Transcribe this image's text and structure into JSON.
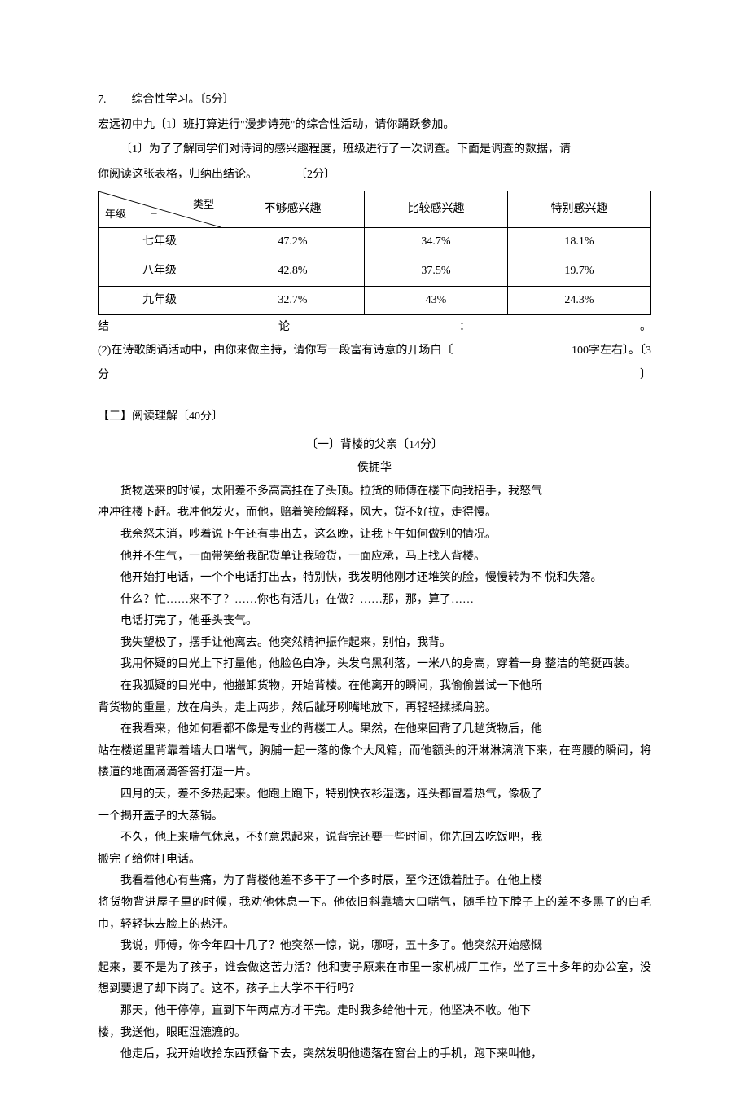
{
  "q7": {
    "num": "7.",
    "title": "综合性学习。〔5分〕",
    "intro": "宏远初中九〔1〕班打算进行\"漫步诗苑\"的综合性活动，请你踊跃参加。",
    "sub1_a": "〔1〕为了了解同学们对诗词的感兴趣程度，班级进行了一次调查。下面是调查的数据，请",
    "sub1_b_left": "你阅读这张表格，归纳出结论。",
    "sub1_b_right": "〔2分〕"
  },
  "table": {
    "diag_top": "类型",
    "diag_bot": "年级",
    "diag_dash": "–",
    "headers": [
      "不够感兴趣",
      "比较感兴趣",
      "特别感兴趣"
    ],
    "rows": [
      {
        "grade": "七年级",
        "c1": "47.2%",
        "c2": "34.7%",
        "c3": "18.1%"
      },
      {
        "grade": "八年级",
        "c1": "42.8%",
        "c2": "37.5%",
        "c3": "19.7%"
      },
      {
        "grade": "九年级",
        "c1": "32.7%",
        "c2": "43%",
        "c3": "24.3%"
      }
    ]
  },
  "conclusion": {
    "a": "结",
    "b": "论",
    "c": "：",
    "d": "。"
  },
  "sub2": {
    "l1_left": "(2)在诗歌朗诵活动中，由你来做主持，请你写一段富有诗意的开场白〔",
    "l1_right": "100字左右〕。〔3",
    "l2_left": "分",
    "l2_right": "〕"
  },
  "reading": {
    "header": "【三】阅读理解〔40分〕",
    "title": "〔一〕背楼的父亲〔14分〕",
    "author": "侯拥华",
    "paragraphs": [
      {
        "first": "货物送来的时候，太阳差不多高高挂在了头顶。拉货的师傅在楼下向我招手，我怒气",
        "rest": "冲冲往楼下赶。我冲他发火，而他，赔着笑脸解释，风大，货不好拉，走得慢。"
      },
      {
        "first": "我余怒未消，吵着说下午还有事出去，这么晚，让我下午如何做别的情况。",
        "rest": ""
      },
      {
        "first": "他并不生气，一面带笑给我配货单让我验货，一面应承，马上找人背楼。",
        "rest": ""
      },
      {
        "first": "他开始打电话，一个个电话打出去，特别快，我发明他刚才还堆笑的脸，慢慢转为不 悦和失落。",
        "rest": ""
      },
      {
        "first": "什么？忙……来不了？……你也有活儿，在做？……那，那，算了……",
        "rest": ""
      },
      {
        "first": "电话打完了，他垂头丧气。",
        "rest": ""
      },
      {
        "first": "我失望极了，摆手让他离去。他突然精神振作起来，别怕，我背。",
        "rest": ""
      },
      {
        "first": "我用怀疑的目光上下打量他，他脸色白净，头发乌黑利落，一米八的身高，穿着一身 整洁的笔挺西装。",
        "rest": ""
      },
      {
        "first": "在我狐疑的目光中，他搬卸货物，开始背楼。在他离开的瞬间，我偷偷尝试一下他所",
        "rest": "背货物的重量，放在肩头，走上两步，然后龇牙咧嘴地放下，再轻轻揉揉肩膀。"
      },
      {
        "first": "在我看来，他如何看都不像是专业的背楼工人。果然，在他来回背了几趟货物后，他",
        "rest": "站在楼道里背靠着墙大口喘气，胸脯一起一落的像个大风箱，而他额头的汗淋淋漓淌下来，在弯腰的瞬间，将楼道的地面滴滴答答打湿一片。"
      },
      {
        "first": "四月的天，差不多热起来。他跑上跑下，特别快衣衫湿透，连头都冒着热气，像极了",
        "rest": "一个揭开盖子的大蒸锅。"
      },
      {
        "first": "不久，他上来喘气休息，不好意思起来，说背完还要一些时间，你先回去吃饭吧，我",
        "rest": "搬完了给你打电话。"
      },
      {
        "first": "我看着他心有些痛，为了背楼他差不多干了一个多时辰，至今还饿着肚子。在他上楼",
        "rest": "将货物背进屋子里的时候，我劝他休息一下。他依旧斜靠墙大口喘气，随手拉下脖子上的差不多黑了的白毛巾，轻轻抹去脸上的热汗。"
      },
      {
        "first": "我说，师傅，你今年四十几了？他突然一惊，说，哪呀，五十多了。他突然开始感慨",
        "rest": "起来，要不是为了孩子，谁会做这苦力活？他和妻子原来在市里一家机械厂工作，坐了三十多年的办公室，没想到要退了却下岗了。这不，孩子上大学不干行吗？"
      },
      {
        "first": "那天，他干停停，直到下午两点方才干完。走时我多给他十元，他坚决不收。他下",
        "rest": "楼，我送他，眼眶湿漉漉的。"
      },
      {
        "first": "他走后，我开始收拾东西预备下去，突然发明他遗落在窗台上的手机，跑下来叫他，",
        "rest": ""
      }
    ]
  }
}
